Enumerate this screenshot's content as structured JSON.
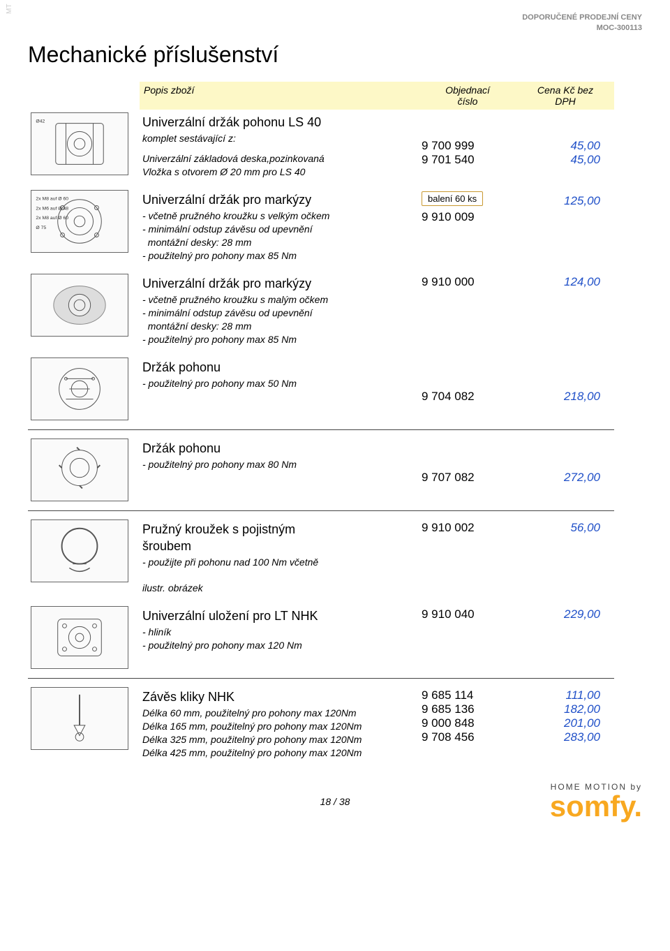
{
  "meta": {
    "side_label": "MT",
    "top_right_line1": "DOPORUČENÉ PRODEJNÍ CENY",
    "top_right_line2": "MOC-300113",
    "page_title": "Mechanické příslušenství",
    "page_num": "18 / 38",
    "logo_tag": "HOME MOTION by",
    "logo_brand": "somfy",
    "logo_dot": "."
  },
  "headers": {
    "popis": "Popis zboží",
    "objednaci": "Objednací\nčíslo",
    "cena": "Cena Kč bez\nDPH"
  },
  "rows": [
    {
      "title": "Univerzální držák pohonu LS 40",
      "sub": "komplet sestávající z:",
      "lines": [
        {
          "text": "Univerzální základová deska,pozinkovaná",
          "order": "9 700 999",
          "price": "45,00"
        },
        {
          "text": "Vložka s otvorem Ø 20 mm pro LS 40",
          "order": "9 701 540",
          "price": "45,00"
        }
      ],
      "img_labels": [
        "Ø42"
      ]
    },
    {
      "title": "Univerzální držák pro markýzy",
      "bullets": [
        "- včetně pružného kroužku s velkým očkem",
        "- minimální odstup závěsu od upevnění",
        "  montážní desky: 28 mm",
        "- použitelný pro pohony max 85 Nm"
      ],
      "badge": "balení 60 ks",
      "order": "9 910 009",
      "price": "125,00",
      "img_labels": [
        "2x M8 auf Ø 60",
        "2x M6 auf Ø 48",
        "2x M8 auf Ø 60",
        "Ø 75"
      ],
      "sep_after": false
    },
    {
      "title": "Univerzální držák pro markýzy",
      "bullets": [
        "- včetně pružného kroužku s malým očkem",
        "- minimální odstup závěsu od upevnění",
        "  montážní desky: 28 mm",
        "- použitelný pro pohony max 85 Nm"
      ],
      "order": "9 910 000",
      "price": "124,00",
      "sep_after": false
    },
    {
      "title": "Držák pohonu",
      "bullets": [
        "- použitelný pro pohony max 50 Nm"
      ],
      "order": "9 704 082",
      "price": "218,00",
      "order_offset": true,
      "sep_after": true
    },
    {
      "title": "Držák pohonu",
      "bullets": [
        "- použitelný pro pohony max 80 Nm"
      ],
      "order": "9 707 082",
      "price": "272,00",
      "order_offset": true,
      "sep_after": true
    },
    {
      "title": "Pružný kroužek s pojistným\nšroubem",
      "bullets": [
        "- použijte při pohonu nad 100 Nm včetně"
      ],
      "order": "9 910 002",
      "price": "56,00",
      "extra_bottom": "ilustr. obrázek",
      "sep_after": false
    },
    {
      "title": "Univerzální uložení pro LT NHK",
      "bullets": [
        "- hliník",
        "- použitelný pro pohony max 120 Nm"
      ],
      "order": "9 910 040",
      "price": "229,00",
      "sep_after": true
    },
    {
      "title": "Závěs kliky NHK",
      "lines": [
        {
          "text": "Délka 60 mm, použitelný pro pohony max 120Nm",
          "order": "9 685 114",
          "price": "111,00"
        },
        {
          "text": "Délka 165 mm, použitelný pro pohony max 120Nm",
          "order": "9 685 136",
          "price": "182,00"
        },
        {
          "text": "Délka 325 mm, použitelný pro pohony max 120Nm",
          "order": "9 000 848",
          "price": "201,00"
        },
        {
          "text": "Délka 425 mm, použitelný pro pohony max 120Nm",
          "order": "9 708 456",
          "price": "283,00"
        }
      ],
      "sep_after": false
    }
  ],
  "colors": {
    "header_bg": "#fdf8c7",
    "price_color": "#2050c8",
    "sep_color": "#444444",
    "badge_border": "#c89830",
    "logo_color": "#f8a820"
  }
}
